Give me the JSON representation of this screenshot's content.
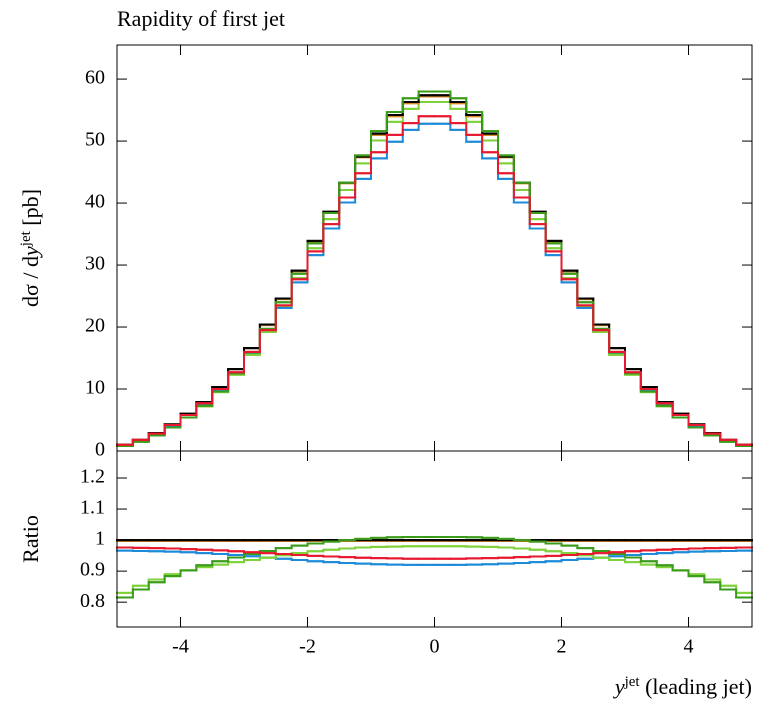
{
  "chart_data": [
    {
      "type": "histogram",
      "title": "Rapidity of first jet",
      "ylabel": [
        "dσ / d",
        "y",
        "jet",
        " [pb]"
      ],
      "bins": [
        -5,
        -4.75,
        -4.5,
        -4.25,
        -4,
        -3.75,
        -3.5,
        -3.25,
        -3,
        -2.75,
        -2.5,
        -2.25,
        -2,
        -1.75,
        -1.5,
        -1.25,
        -1,
        -0.75,
        -0.5,
        -0.25,
        0,
        0.25,
        0.5,
        0.75,
        1,
        1.25,
        1.5,
        1.75,
        2,
        2.25,
        2.5,
        2.75,
        3,
        3.25,
        3.5,
        3.75,
        4,
        4.25,
        4.5,
        4.75,
        5
      ],
      "xlim": [
        -5,
        5
      ],
      "xticks": [
        -4,
        -2,
        0,
        2,
        4
      ],
      "xticklabels": false,
      "ylim": [
        0,
        65.5
      ],
      "yticks": [
        0,
        10,
        20,
        30,
        40,
        50,
        60
      ],
      "series": [
        {
          "color": "#1d8bd9",
          "values": [
            1.0,
            1.7,
            2.8,
            4.1,
            5.8,
            7.6,
            9.8,
            12.6,
            15.7,
            19.3,
            23.1,
            27.2,
            31.6,
            35.9,
            40.1,
            43.9,
            47.2,
            49.9,
            51.8,
            52.8,
            52.8,
            51.8,
            49.9,
            47.2,
            43.9,
            40.1,
            35.9,
            31.6,
            27.2,
            23.1,
            19.3,
            15.7,
            12.6,
            9.8,
            7.6,
            5.8,
            4.1,
            2.8,
            1.7,
            1.0
          ]
        },
        {
          "color": "#7fd13b",
          "values": [
            0.8,
            1.5,
            2.5,
            3.8,
            5.4,
            7.2,
            9.5,
            12.3,
            15.5,
            19.2,
            23.4,
            27.9,
            32.7,
            37.4,
            42.1,
            46.4,
            50.1,
            53.1,
            55.2,
            56.3,
            56.3,
            55.2,
            53.1,
            50.1,
            46.4,
            42.1,
            37.4,
            32.7,
            27.9,
            23.4,
            19.2,
            15.5,
            12.3,
            9.5,
            7.2,
            5.4,
            3.8,
            2.5,
            1.5,
            0.8
          ]
        },
        {
          "color": "#d98a2b",
          "values": [
            1.0,
            1.8,
            2.9,
            4.3,
            6.0,
            7.9,
            10.3,
            13.2,
            16.6,
            20.3,
            24.5,
            29.0,
            33.8,
            38.5,
            43.2,
            47.4,
            51.0,
            54.0,
            56.1,
            57.2,
            57.2,
            56.1,
            54.0,
            51.0,
            47.4,
            43.2,
            38.5,
            33.8,
            29.0,
            24.5,
            20.3,
            16.6,
            13.2,
            10.3,
            7.9,
            6.0,
            4.3,
            2.9,
            1.8,
            1.0
          ]
        },
        {
          "color": "#000000",
          "values": [
            1.0,
            1.8,
            2.9,
            4.3,
            6.0,
            7.9,
            10.3,
            13.2,
            16.6,
            20.4,
            24.6,
            29.1,
            33.9,
            38.6,
            43.3,
            47.5,
            51.2,
            54.2,
            56.3,
            57.4,
            57.4,
            56.3,
            54.2,
            51.2,
            47.5,
            43.3,
            38.6,
            33.9,
            29.1,
            24.6,
            20.4,
            16.6,
            13.2,
            10.3,
            7.9,
            6.0,
            4.3,
            2.9,
            1.8,
            1.0
          ]
        },
        {
          "color": "#3b9b1a",
          "values": [
            0.8,
            1.5,
            2.5,
            3.8,
            5.4,
            7.3,
            9.6,
            12.5,
            15.9,
            19.7,
            24.0,
            28.6,
            33.5,
            38.4,
            43.3,
            47.7,
            51.6,
            54.7,
            56.9,
            58.0,
            58.0,
            56.9,
            54.7,
            51.6,
            47.7,
            43.3,
            38.4,
            33.5,
            28.6,
            24.0,
            19.7,
            15.9,
            12.5,
            9.6,
            7.3,
            5.4,
            3.8,
            2.5,
            1.5,
            0.8
          ]
        },
        {
          "color": "#e8182f",
          "values": [
            1.0,
            1.8,
            2.8,
            4.2,
            5.8,
            7.7,
            10.0,
            12.7,
            16.0,
            19.5,
            23.5,
            27.7,
            32.2,
            36.6,
            40.9,
            44.8,
            48.2,
            51.0,
            52.9,
            54.0,
            54.0,
            52.9,
            51.0,
            48.2,
            44.8,
            40.9,
            36.6,
            32.2,
            27.7,
            23.5,
            19.5,
            16.0,
            12.7,
            10.0,
            7.7,
            5.8,
            4.2,
            2.8,
            1.8,
            1.0
          ]
        }
      ]
    },
    {
      "type": "histogram",
      "ylabel": [
        "Ratio"
      ],
      "xlabel": [
        "y",
        "jet",
        " (leading jet)"
      ],
      "bins": [
        -5,
        -4.75,
        -4.5,
        -4.25,
        -4,
        -3.75,
        -3.5,
        -3.25,
        -3,
        -2.75,
        -2.5,
        -2.25,
        -2,
        -1.75,
        -1.5,
        -1.25,
        -1,
        -0.75,
        -0.5,
        -0.25,
        0,
        0.25,
        0.5,
        0.75,
        1,
        1.25,
        1.5,
        1.75,
        2,
        2.25,
        2.5,
        2.75,
        3,
        3.25,
        3.5,
        3.75,
        4,
        4.25,
        4.5,
        4.75,
        5
      ],
      "xlim": [
        -5,
        5
      ],
      "xticks": [
        -4,
        -2,
        0,
        2,
        4
      ],
      "xticklabels": true,
      "ylim": [
        0.72,
        1.287
      ],
      "yticks": [
        0.8,
        0.9,
        1,
        1.1,
        1.2
      ],
      "series": [
        {
          "color": "#1d8bd9",
          "values": [
            0.966,
            0.965,
            0.964,
            0.963,
            0.961,
            0.958,
            0.955,
            0.952,
            0.948,
            0.944,
            0.94,
            0.936,
            0.932,
            0.929,
            0.926,
            0.924,
            0.922,
            0.921,
            0.92,
            0.92,
            0.92,
            0.92,
            0.921,
            0.922,
            0.924,
            0.926,
            0.929,
            0.932,
            0.936,
            0.94,
            0.944,
            0.948,
            0.952,
            0.955,
            0.958,
            0.961,
            0.963,
            0.964,
            0.965,
            0.966
          ]
        },
        {
          "color": "#7fd13b",
          "values": [
            0.83,
            0.853,
            0.873,
            0.89,
            0.903,
            0.913,
            0.921,
            0.929,
            0.936,
            0.943,
            0.951,
            0.958,
            0.964,
            0.969,
            0.973,
            0.976,
            0.978,
            0.979,
            0.98,
            0.98,
            0.98,
            0.98,
            0.979,
            0.978,
            0.976,
            0.973,
            0.969,
            0.964,
            0.958,
            0.951,
            0.943,
            0.936,
            0.929,
            0.921,
            0.913,
            0.903,
            0.89,
            0.873,
            0.853,
            0.83
          ]
        },
        {
          "color": "#d98a2b",
          "values": [
            0.997,
            0.997,
            0.997,
            0.997,
            0.997,
            0.997,
            0.997,
            0.997,
            0.997,
            0.997,
            0.997,
            0.997,
            0.997,
            0.997,
            0.997,
            0.997,
            0.997,
            0.997,
            0.997,
            0.997,
            0.997,
            0.997,
            0.997,
            0.997,
            0.997,
            0.997,
            0.997,
            0.997,
            0.997,
            0.997,
            0.997,
            0.997,
            0.997,
            0.997,
            0.997,
            0.997,
            0.997,
            0.997,
            0.997,
            0.997
          ]
        },
        {
          "color": "#000000",
          "values": [
            1,
            1,
            1,
            1,
            1,
            1,
            1,
            1,
            1,
            1,
            1,
            1,
            1,
            1,
            1,
            1,
            1,
            1,
            1,
            1,
            1,
            1,
            1,
            1,
            1,
            1,
            1,
            1,
            1,
            1,
            1,
            1,
            1,
            1,
            1,
            1,
            1,
            1,
            1,
            1
          ]
        },
        {
          "color": "#3b9b1a",
          "values": [
            0.815,
            0.841,
            0.864,
            0.884,
            0.902,
            0.919,
            0.932,
            0.944,
            0.955,
            0.965,
            0.974,
            0.982,
            0.989,
            0.995,
            1.0,
            1.004,
            1.007,
            1.009,
            1.01,
            1.01,
            1.01,
            1.01,
            1.009,
            1.007,
            1.004,
            1.0,
            0.995,
            0.989,
            0.982,
            0.974,
            0.965,
            0.955,
            0.944,
            0.932,
            0.919,
            0.902,
            0.884,
            0.864,
            0.841,
            0.815
          ]
        },
        {
          "color": "#e8182f",
          "values": [
            0.976,
            0.975,
            0.974,
            0.973,
            0.971,
            0.969,
            0.967,
            0.964,
            0.961,
            0.958,
            0.955,
            0.952,
            0.949,
            0.947,
            0.945,
            0.943,
            0.942,
            0.941,
            0.94,
            0.94,
            0.94,
            0.94,
            0.941,
            0.942,
            0.943,
            0.945,
            0.947,
            0.949,
            0.952,
            0.955,
            0.958,
            0.961,
            0.964,
            0.967,
            0.969,
            0.971,
            0.973,
            0.974,
            0.975,
            0.976
          ]
        }
      ]
    }
  ]
}
